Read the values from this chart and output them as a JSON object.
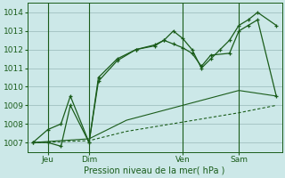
{
  "bg_color": "#cce8e8",
  "grid_color": "#a0c0c0",
  "line_color": "#1a5c1a",
  "title": "Pression niveau de la mer( hPa )",
  "yticks": [
    1007,
    1008,
    1009,
    1010,
    1011,
    1012,
    1013,
    1014
  ],
  "ylim": [
    1006.5,
    1014.5
  ],
  "xlim": [
    -0.3,
    13.3
  ],
  "xtick_positions": [
    0.8,
    3.0,
    8.0,
    11.0
  ],
  "xtick_labels": [
    "Jeu",
    "Dim",
    "Ven",
    "Sam"
  ],
  "vlines": [
    0.8,
    3.0,
    8.0,
    11.0
  ],
  "series1_x": [
    0.0,
    0.8,
    1.5,
    2.0,
    3.0,
    3.5,
    4.5,
    5.5,
    6.5,
    7.0,
    7.5,
    8.0,
    8.5,
    9.0,
    9.5,
    10.0,
    10.5,
    11.0,
    11.5,
    12.0,
    13.0
  ],
  "series1_y": [
    1007.0,
    1007.7,
    1008.0,
    1009.5,
    1007.0,
    1010.5,
    1011.5,
    1012.0,
    1012.25,
    1012.5,
    1013.0,
    1012.6,
    1012.0,
    1011.0,
    1011.5,
    1012.0,
    1012.5,
    1013.3,
    1013.6,
    1014.0,
    1013.3
  ],
  "series2_x": [
    0.0,
    0.8,
    1.5,
    2.0,
    3.0,
    3.5,
    4.5,
    5.5,
    6.5,
    7.0,
    7.5,
    8.0,
    8.5,
    9.0,
    9.5,
    10.5,
    11.0,
    11.5,
    12.0,
    13.0
  ],
  "series2_y": [
    1007.0,
    1007.0,
    1006.8,
    1009.0,
    1007.0,
    1010.3,
    1011.4,
    1012.0,
    1012.2,
    1012.5,
    1012.3,
    1012.1,
    1011.8,
    1011.1,
    1011.7,
    1011.8,
    1013.0,
    1013.3,
    1013.6,
    1009.5
  ],
  "series3_x": [
    0.0,
    3.0,
    5.0,
    8.0,
    11.0,
    13.0
  ],
  "series3_y": [
    1007.0,
    1007.2,
    1008.2,
    1009.0,
    1009.8,
    1009.5
  ],
  "series4_x": [
    0.0,
    3.0,
    5.0,
    8.0,
    11.0,
    13.0
  ],
  "series4_y": [
    1007.0,
    1007.1,
    1007.6,
    1008.1,
    1008.6,
    1009.0
  ]
}
